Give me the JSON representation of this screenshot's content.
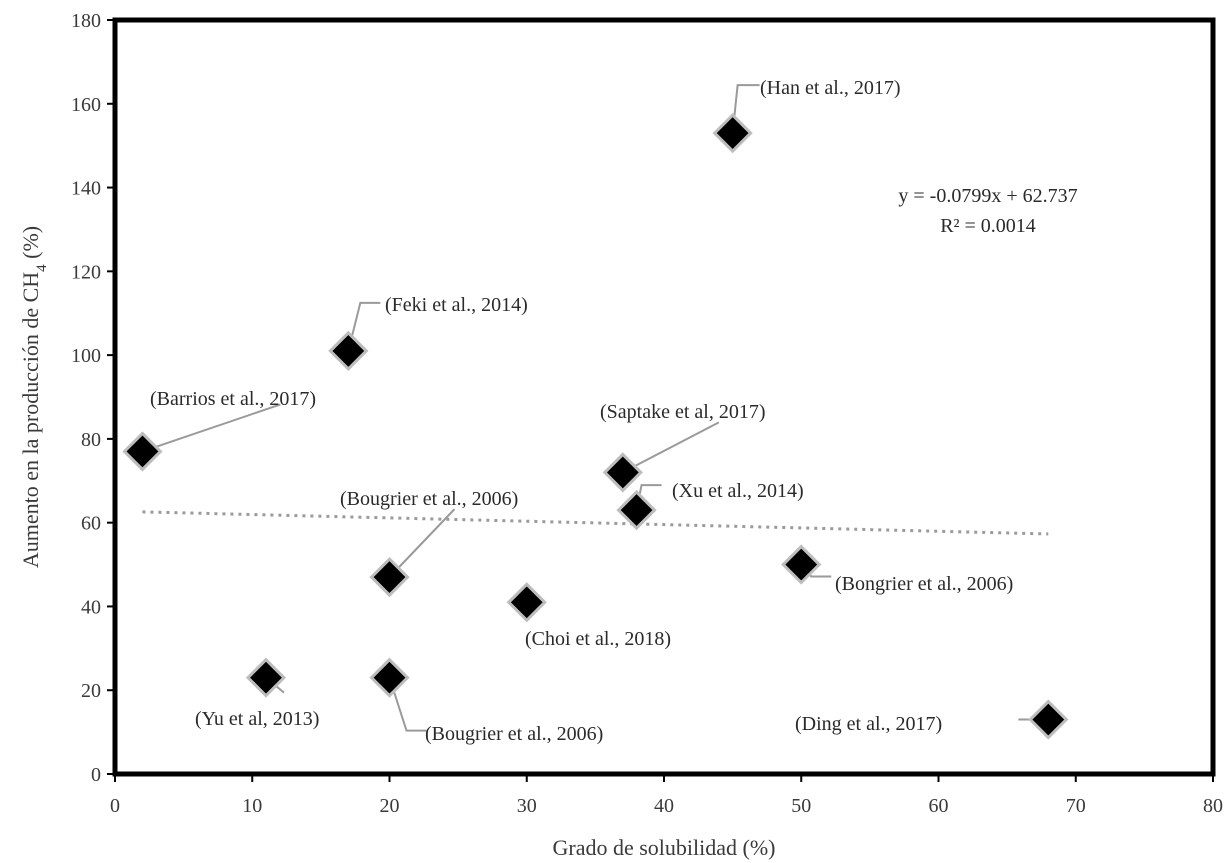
{
  "chart_data": {
    "type": "scatter",
    "xlabel": "Grado de solubilidad (%)",
    "ylabel_main": "Aumento en la producción de CH",
    "ylabel_sub": "4",
    "ylabel_tail": " (%)",
    "xlim": [
      0,
      80
    ],
    "ylim": [
      0,
      180
    ],
    "xticks": [
      0,
      10,
      20,
      30,
      40,
      50,
      60,
      70,
      80
    ],
    "yticks": [
      0,
      20,
      40,
      60,
      80,
      100,
      120,
      140,
      160,
      180
    ],
    "grid": false,
    "points": [
      {
        "x": 45,
        "y": 153,
        "label": "(Han et al., 2017)"
      },
      {
        "x": 17,
        "y": 101,
        "label": "(Feki et al., 2014)"
      },
      {
        "x": 2,
        "y": 77,
        "label": "(Barrios et al., 2017)"
      },
      {
        "x": 37,
        "y": 72,
        "label": "(Saptake et al, 2017)"
      },
      {
        "x": 38,
        "y": 63,
        "label": "(Xu et al., 2014)"
      },
      {
        "x": 20,
        "y": 47,
        "label": "(Bougrier et al., 2006)"
      },
      {
        "x": 50,
        "y": 50,
        "label": "(Bongrier et al., 2006)"
      },
      {
        "x": 30,
        "y": 41,
        "label": "(Choi et al., 2018)"
      },
      {
        "x": 11,
        "y": 23,
        "label": "(Yu et al, 2013)"
      },
      {
        "x": 20,
        "y": 23,
        "label": "(Bougrier et al., 2006)"
      },
      {
        "x": 68,
        "y": 13,
        "label": "(Ding et al., 2017)"
      }
    ],
    "trendline": {
      "type": "linear",
      "slope": -0.0799,
      "intercept": 62.737,
      "x_range": [
        2,
        68
      ],
      "style": "dotted",
      "equation": "y = -0.0799x + 62.737",
      "r2": "R² = 0.0014"
    }
  }
}
